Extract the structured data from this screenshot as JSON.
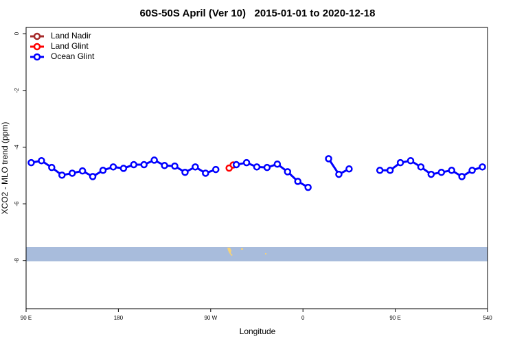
{
  "chart_data": {
    "type": "line",
    "title": "60S-50S April (Ver 10)   2015-01-01 to 2020-12-18",
    "x_label": "Longitude",
    "y_label": "XCO2 - MLO trend (ppm)",
    "x": [
      95,
      105,
      115,
      125,
      135,
      145,
      155,
      165,
      175,
      185,
      195,
      205,
      215,
      225,
      235,
      245,
      255,
      265,
      275,
      285,
      295,
      305,
      315,
      325,
      335,
      345,
      355,
      365,
      375,
      385,
      395,
      405,
      415,
      425,
      435,
      445,
      455,
      465,
      475,
      485,
      495,
      505,
      515,
      525,
      535
    ],
    "series": [
      {
        "name": "Land Nadir",
        "color": "#a52a2a",
        "x": [],
        "values": []
      },
      {
        "name": "Land Glint",
        "color": "#ff0000",
        "x": [
          288,
          292
        ],
        "values": [
          -4.74,
          -4.63
        ]
      },
      {
        "name": "Ocean Glint",
        "color": "#0000ff",
        "values": [
          -4.55,
          -4.48,
          -4.72,
          -4.99,
          -4.92,
          -4.84,
          -5.04,
          -4.82,
          -4.7,
          -4.75,
          -4.62,
          -4.62,
          -4.46,
          -4.65,
          -4.67,
          -4.89,
          -4.7,
          -4.92,
          -4.79,
          null,
          -4.62,
          -4.55,
          -4.7,
          -4.72,
          -4.6,
          -4.87,
          -5.21,
          -5.42,
          null,
          -4.41,
          -4.96,
          -4.77,
          null,
          null,
          -4.82,
          -4.82,
          -4.55,
          -4.48,
          -4.7,
          -4.96,
          -4.89,
          -4.82,
          -5.04,
          -4.82,
          -4.7
        ]
      }
    ],
    "xlim": [
      90,
      540
    ],
    "ylim": [
      -9.7,
      0.22
    ],
    "xticks": [
      {
        "value": 90,
        "label": "90 E"
      },
      180,
      {
        "value": 270,
        "label": "90 W"
      },
      {
        "value": 360,
        "label": "0"
      },
      {
        "value": 450,
        "label": "90 E"
      },
      540
    ],
    "yticks": [
      0,
      -2,
      -4,
      -6,
      -8
    ],
    "legend_position": "top-left"
  }
}
